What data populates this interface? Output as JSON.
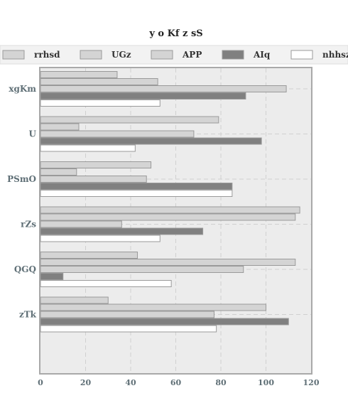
{
  "chart_data": {
    "type": "bar",
    "orientation": "horizontal",
    "title": "y o Kf  z sS",
    "categories": [
      "xgKm",
      "U",
      "PSmO",
      "rZs",
      "QGQ",
      "zTk"
    ],
    "series": [
      {
        "name": "rrhsd",
        "color": "#d4d4d4",
        "values": [
          34,
          79,
          49,
          115,
          43,
          30
        ]
      },
      {
        "name": "UGz",
        "color": "#d4d4d4",
        "values": [
          52,
          17,
          16,
          113,
          113,
          100
        ]
      },
      {
        "name": "APP",
        "color": "#d4d4d4",
        "values": [
          109,
          68,
          47,
          36,
          90,
          77
        ]
      },
      {
        "name": "AIq",
        "color": "#808080",
        "values": [
          91,
          98,
          85,
          72,
          10,
          110
        ]
      },
      {
        "name": "nhhsz",
        "color": "#ffffff",
        "values": [
          53,
          42,
          85,
          53,
          58,
          78
        ]
      }
    ],
    "xlim": [
      0,
      120
    ],
    "xticks": [
      0,
      20,
      40,
      60,
      80,
      100,
      120
    ],
    "grid": true,
    "legend_position": "top"
  }
}
